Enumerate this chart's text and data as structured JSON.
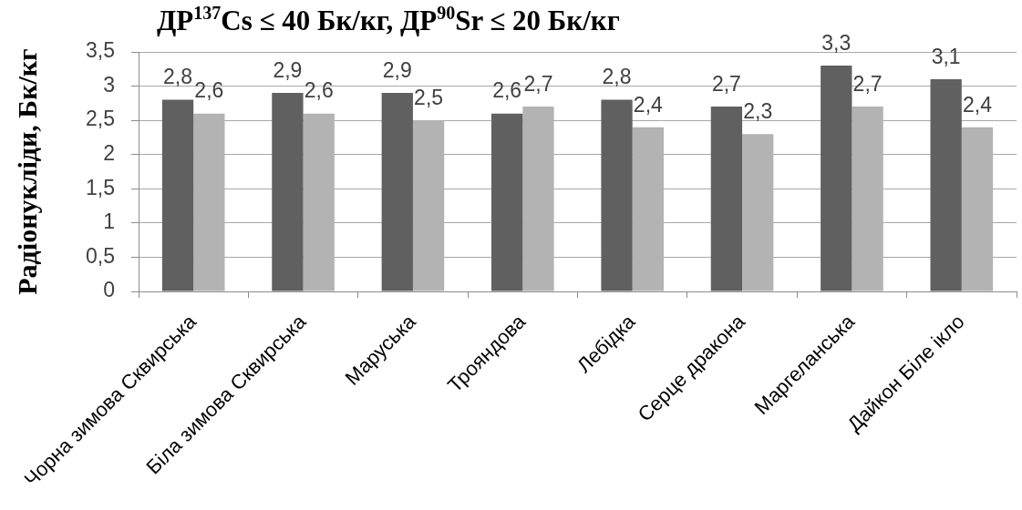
{
  "chart_data": {
    "type": "bar",
    "title": "ДР$^{137}$Cs ≤ 40 Бк/кг, ДР$^{90}$Sr ≤ 20 Бк/кг",
    "ylabel": "Радіонукліди, Бк/кг",
    "categories": [
      "Чорна зимова Сквирська",
      "Біла зимова Сквирська",
      "Маруська",
      "Трояндова",
      "Лебідка",
      "Серце дракона",
      "Маргеланська",
      "Дайкон Біле ікло"
    ],
    "series": [
      {
        "color": "#606060",
        "values": [
          2.8,
          2.9,
          2.9,
          2.6,
          2.8,
          2.7,
          3.3,
          3.1
        ],
        "value_labels": [
          "2,8",
          "2,9",
          "2,9",
          "2,6",
          "2,8",
          "2,7",
          "3,3",
          "3,1"
        ]
      },
      {
        "color": "#b3b3b3",
        "values": [
          2.6,
          2.6,
          2.5,
          2.7,
          2.4,
          2.3,
          2.7,
          2.4
        ],
        "value_labels": [
          "2,6",
          "2,6",
          "2,5",
          "2,7",
          "2,4",
          "2,3",
          "2,7",
          "2,4"
        ]
      }
    ],
    "ylim": [
      0,
      3.5
    ],
    "yticks": [
      0,
      {
        "value": 0.5,
        "label": "0,5"
      },
      1,
      {
        "value": 1.5,
        "label": "1,5"
      },
      2,
      {
        "value": 2.5,
        "label": "2,5"
      },
      3,
      {
        "value": 3.5,
        "label": "3,5"
      }
    ],
    "grid": "y",
    "legend": false
  }
}
